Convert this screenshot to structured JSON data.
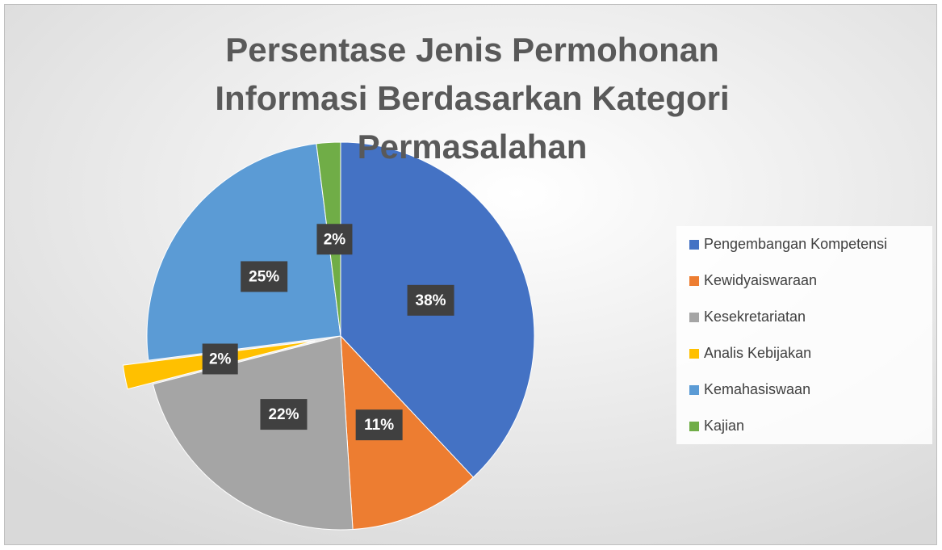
{
  "chart_data": {
    "type": "pie",
    "title": "Persentase Jenis Permohonan Informasi Berdasarkan Kategori Permasalahan",
    "categories": [
      "Pengembangan Kompetensi",
      "Kewidyaiswaraan",
      "Kesekretariatan",
      "Analis Kebijakan",
      "Kemahasiswaan",
      "Kajian"
    ],
    "values": [
      38,
      11,
      22,
      2,
      25,
      2
    ],
    "value_labels": [
      "38%",
      "11%",
      "22%",
      "2%",
      "25%",
      "2%"
    ],
    "colors": [
      "#4472c4",
      "#ed7d31",
      "#a5a5a5",
      "#ffc000",
      "#5b9bd5",
      "#70ad47"
    ],
    "legend": "right"
  }
}
